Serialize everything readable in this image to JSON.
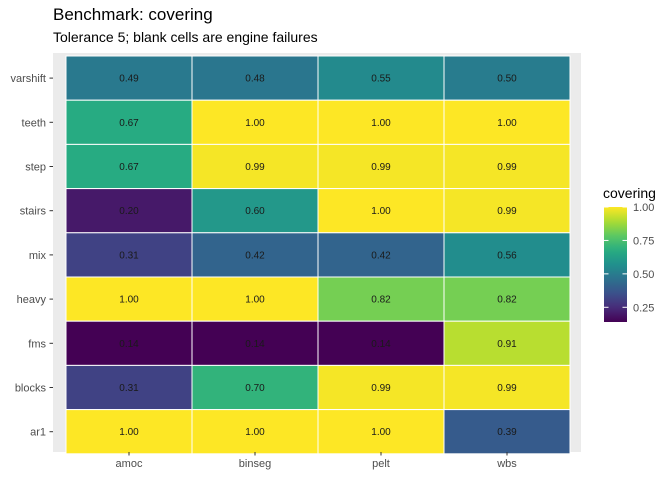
{
  "chart_data": {
    "type": "heatmap",
    "title": "Benchmark: covering",
    "subtitle": "Tolerance 5; blank cells are engine failures",
    "xlabel": "",
    "ylabel": "",
    "x": [
      "amoc",
      "binseg",
      "pelt",
      "wbs"
    ],
    "y": [
      "varshift",
      "teeth",
      "step",
      "stairs",
      "mix",
      "heavy",
      "fms",
      "blocks",
      "ar1"
    ],
    "values": [
      [
        0.49,
        0.48,
        0.55,
        0.5
      ],
      [
        0.67,
        1.0,
        1.0,
        1.0
      ],
      [
        0.67,
        0.99,
        0.99,
        0.99
      ],
      [
        0.2,
        0.6,
        1.0,
        0.99
      ],
      [
        0.31,
        0.42,
        0.42,
        0.56
      ],
      [
        1.0,
        1.0,
        0.82,
        0.82
      ],
      [
        0.14,
        0.14,
        0.14,
        0.91
      ],
      [
        0.31,
        0.7,
        0.99,
        0.99
      ],
      [
        1.0,
        1.0,
        1.0,
        0.39
      ]
    ],
    "value_labels": [
      [
        "0.49",
        "0.48",
        "0.55",
        "0.50"
      ],
      [
        "0.67",
        "1.00",
        "1.00",
        "1.00"
      ],
      [
        "0.67",
        "0.99",
        "0.99",
        "0.99"
      ],
      [
        "0.20",
        "0.60",
        "1.00",
        "0.99"
      ],
      [
        "0.31",
        "0.42",
        "0.42",
        "0.56"
      ],
      [
        "1.00",
        "1.00",
        "0.82",
        "0.82"
      ],
      [
        "0.14",
        "0.14",
        "0.14",
        "0.91"
      ],
      [
        "0.31",
        "0.70",
        "0.99",
        "0.99"
      ],
      [
        "1.00",
        "1.00",
        "1.00",
        "0.39"
      ]
    ],
    "color_scale": "viridis",
    "color_range": [
      0.14,
      1.0
    ],
    "legend": {
      "title": "covering",
      "ticks": [
        0.25,
        0.5,
        0.75,
        1.0
      ],
      "tick_labels": [
        "0.25",
        "0.50",
        "0.75",
        "1.00"
      ],
      "placement": "right"
    },
    "grid": true,
    "panel_background": "#ebebeb",
    "cell_border_color": "#ffffff"
  }
}
